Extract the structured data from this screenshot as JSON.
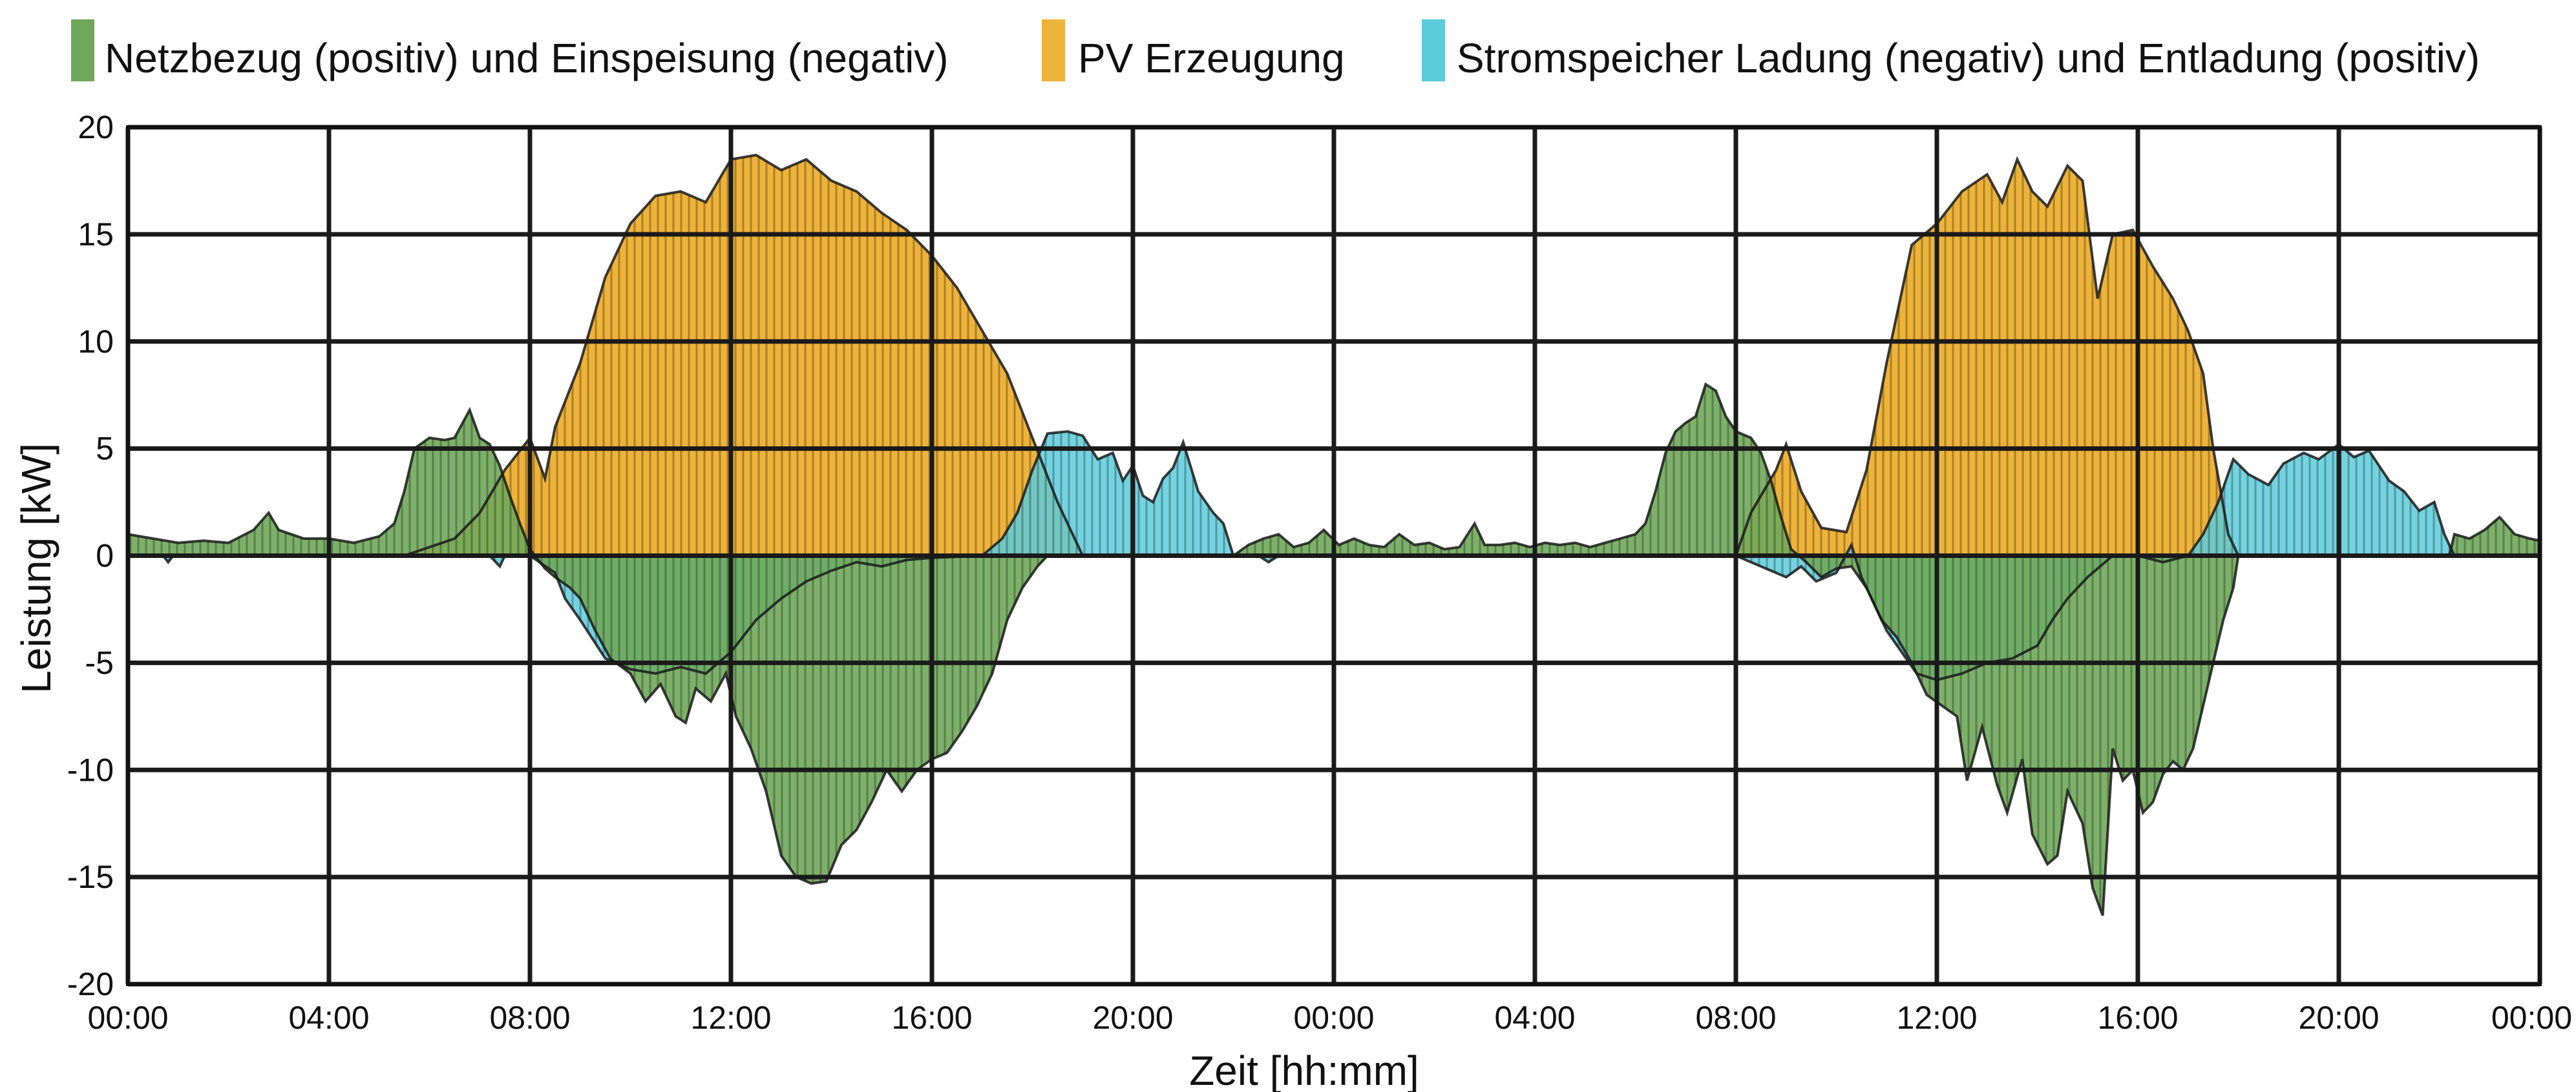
{
  "chart_data": {
    "type": "area",
    "xlabel": "Zeit [hh:mm]",
    "ylabel": "Leistung [kW]",
    "ylim": [
      -20,
      20
    ],
    "xlim_hours": [
      0,
      48
    ],
    "grid": true,
    "legend_position": "top",
    "x_ticks": [
      {
        "h": 0,
        "label": "00:00"
      },
      {
        "h": 4,
        "label": "04:00"
      },
      {
        "h": 8,
        "label": "08:00"
      },
      {
        "h": 12,
        "label": "12:00"
      },
      {
        "h": 16,
        "label": "16:00"
      },
      {
        "h": 20,
        "label": "20:00"
      },
      {
        "h": 24,
        "label": "00:00"
      },
      {
        "h": 28,
        "label": "04:00"
      },
      {
        "h": 32,
        "label": "08:00"
      },
      {
        "h": 36,
        "label": "12:00"
      },
      {
        "h": 40,
        "label": "16:00"
      },
      {
        "h": 44,
        "label": "20:00"
      },
      {
        "h": 48,
        "label": "00:00"
      }
    ],
    "y_ticks": [
      {
        "v": 20,
        "label": "20"
      },
      {
        "v": 15,
        "label": "15"
      },
      {
        "v": 10,
        "label": "10"
      },
      {
        "v": 5,
        "label": "5"
      },
      {
        "v": 0,
        "label": "0"
      },
      {
        "v": -5,
        "label": "-5"
      },
      {
        "v": -10,
        "label": "-10"
      },
      {
        "v": -15,
        "label": "-15"
      },
      {
        "v": -20,
        "label": "-20"
      }
    ],
    "series": [
      {
        "name": "PV Erzeugung",
        "color": "#EEB33A",
        "points": [
          [
            0,
            0
          ],
          [
            5.5,
            0
          ],
          [
            6.5,
            0.8
          ],
          [
            7,
            2
          ],
          [
            7.5,
            4
          ],
          [
            8,
            5.5
          ],
          [
            8.3,
            3.6
          ],
          [
            8.5,
            6
          ],
          [
            9,
            9
          ],
          [
            9.5,
            13
          ],
          [
            10,
            15.5
          ],
          [
            10.5,
            16.8
          ],
          [
            11,
            17
          ],
          [
            11.5,
            16.5
          ],
          [
            12,
            18.5
          ],
          [
            12.5,
            18.7
          ],
          [
            13,
            18
          ],
          [
            13.5,
            18.5
          ],
          [
            14,
            17.5
          ],
          [
            14.5,
            17
          ],
          [
            15,
            16
          ],
          [
            15.5,
            15.2
          ],
          [
            16,
            14
          ],
          [
            16.5,
            12.5
          ],
          [
            17,
            10.5
          ],
          [
            17.5,
            8.5
          ],
          [
            18,
            5.5
          ],
          [
            18.5,
            2.5
          ],
          [
            19,
            0
          ],
          [
            32,
            0
          ],
          [
            32.3,
            2
          ],
          [
            32.8,
            4
          ],
          [
            33,
            5.2
          ],
          [
            33.3,
            3
          ],
          [
            33.7,
            1.3
          ],
          [
            34.2,
            1.1
          ],
          [
            34.6,
            4
          ],
          [
            35,
            9
          ],
          [
            35.5,
            14.5
          ],
          [
            36,
            15.5
          ],
          [
            36.5,
            17
          ],
          [
            37,
            17.8
          ],
          [
            37.3,
            16.5
          ],
          [
            37.6,
            18.5
          ],
          [
            37.9,
            17
          ],
          [
            38.2,
            16.3
          ],
          [
            38.6,
            18.2
          ],
          [
            38.9,
            17.5
          ],
          [
            39.2,
            12
          ],
          [
            39.5,
            15
          ],
          [
            39.9,
            15.2
          ],
          [
            40.3,
            13.5
          ],
          [
            40.7,
            12
          ],
          [
            41,
            10.5
          ],
          [
            41.3,
            8.5
          ],
          [
            41.5,
            5
          ],
          [
            41.8,
            1
          ],
          [
            42,
            0
          ],
          [
            48,
            0
          ]
        ]
      },
      {
        "name": "Stromspeicher Ladung (negativ) und Entladung (positiv)",
        "color": "#5CCBDB",
        "points": [
          [
            0,
            0
          ],
          [
            0.7,
            0
          ],
          [
            0.8,
            -0.3
          ],
          [
            0.9,
            0
          ],
          [
            7.2,
            0
          ],
          [
            7.4,
            -0.5
          ],
          [
            7.5,
            0
          ],
          [
            8,
            0
          ],
          [
            8.5,
            -0.8
          ],
          [
            8.7,
            -2
          ],
          [
            9,
            -3
          ],
          [
            9.5,
            -4.8
          ],
          [
            10,
            -5.3
          ],
          [
            10.5,
            -5.5
          ],
          [
            11,
            -5.2
          ],
          [
            11.5,
            -5.5
          ],
          [
            12,
            -4.5
          ],
          [
            12.5,
            -3
          ],
          [
            13,
            -2
          ],
          [
            13.5,
            -1.2
          ],
          [
            14,
            -0.7
          ],
          [
            14.5,
            -0.3
          ],
          [
            15,
            -0.5
          ],
          [
            15.5,
            -0.2
          ],
          [
            16,
            -0.1
          ],
          [
            17,
            0
          ],
          [
            17.4,
            0.8
          ],
          [
            17.7,
            2
          ],
          [
            18,
            4
          ],
          [
            18.3,
            5.7
          ],
          [
            18.7,
            5.8
          ],
          [
            19,
            5.6
          ],
          [
            19.3,
            4.5
          ],
          [
            19.6,
            4.8
          ],
          [
            19.8,
            3.5
          ],
          [
            20,
            4.2
          ],
          [
            20.2,
            2.8
          ],
          [
            20.4,
            2.5
          ],
          [
            20.6,
            3.6
          ],
          [
            20.8,
            4.1
          ],
          [
            21,
            5.3
          ],
          [
            21.3,
            3
          ],
          [
            21.6,
            2
          ],
          [
            21.8,
            1.5
          ],
          [
            22,
            0
          ],
          [
            22.5,
            0
          ],
          [
            22.7,
            -0.3
          ],
          [
            22.9,
            0
          ],
          [
            32,
            0
          ],
          [
            32.5,
            -0.5
          ],
          [
            33,
            -1
          ],
          [
            33.3,
            -0.5
          ],
          [
            33.6,
            -1.2
          ],
          [
            34,
            -0.8
          ],
          [
            34.3,
            0.5
          ],
          [
            34.5,
            -1
          ],
          [
            34.8,
            -2.5
          ],
          [
            35,
            -3.5
          ],
          [
            35.3,
            -4.5
          ],
          [
            35.6,
            -5.5
          ],
          [
            36,
            -5.8
          ],
          [
            36.5,
            -5.5
          ],
          [
            37,
            -5
          ],
          [
            37.5,
            -4.8
          ],
          [
            38,
            -4.2
          ],
          [
            38.3,
            -3
          ],
          [
            38.6,
            -2
          ],
          [
            39,
            -1
          ],
          [
            39.5,
            0
          ],
          [
            40,
            0
          ],
          [
            40.5,
            -0.3
          ],
          [
            41,
            0
          ],
          [
            41.3,
            1
          ],
          [
            41.6,
            2.5
          ],
          [
            41.9,
            4.5
          ],
          [
            42.2,
            3.8
          ],
          [
            42.6,
            3.3
          ],
          [
            42.9,
            4.3
          ],
          [
            43.3,
            4.8
          ],
          [
            43.6,
            4.5
          ],
          [
            44,
            5.2
          ],
          [
            44.3,
            4.6
          ],
          [
            44.6,
            4.9
          ],
          [
            45,
            3.5
          ],
          [
            45.3,
            3
          ],
          [
            45.6,
            2.1
          ],
          [
            45.9,
            2.5
          ],
          [
            46.1,
            1
          ],
          [
            46.3,
            0
          ],
          [
            48,
            0
          ]
        ]
      },
      {
        "name": "Netzbezug (positiv) und Einspeisung (negativ)",
        "color": "#6FA85A",
        "points": [
          [
            0,
            1
          ],
          [
            0.5,
            0.8
          ],
          [
            1,
            0.6
          ],
          [
            1.5,
            0.7
          ],
          [
            2,
            0.6
          ],
          [
            2.5,
            1.2
          ],
          [
            2.8,
            2
          ],
          [
            3,
            1.2
          ],
          [
            3.5,
            0.8
          ],
          [
            4,
            0.8
          ],
          [
            4.5,
            0.6
          ],
          [
            5,
            0.9
          ],
          [
            5.3,
            1.5
          ],
          [
            5.5,
            3
          ],
          [
            5.7,
            5
          ],
          [
            6,
            5.5
          ],
          [
            6.3,
            5.4
          ],
          [
            6.5,
            5.5
          ],
          [
            6.8,
            6.8
          ],
          [
            7,
            5.5
          ],
          [
            7.2,
            5.2
          ],
          [
            7.4,
            4.2
          ],
          [
            7.6,
            2.8
          ],
          [
            7.8,
            1.5
          ],
          [
            8,
            0.3
          ],
          [
            8.3,
            -0.6
          ],
          [
            8.5,
            -1
          ],
          [
            8.8,
            -1.5
          ],
          [
            9,
            -2
          ],
          [
            9.3,
            -3.5
          ],
          [
            9.6,
            -4.8
          ],
          [
            10,
            -5.5
          ],
          [
            10.3,
            -6.8
          ],
          [
            10.6,
            -6
          ],
          [
            10.9,
            -7.5
          ],
          [
            11.1,
            -7.8
          ],
          [
            11.3,
            -6.2
          ],
          [
            11.6,
            -6.8
          ],
          [
            11.9,
            -5.5
          ],
          [
            12.1,
            -7.5
          ],
          [
            12.4,
            -9
          ],
          [
            12.7,
            -11
          ],
          [
            13,
            -14
          ],
          [
            13.3,
            -15
          ],
          [
            13.6,
            -15.3
          ],
          [
            13.9,
            -15.2
          ],
          [
            14.2,
            -13.5
          ],
          [
            14.5,
            -12.8
          ],
          [
            14.8,
            -11.5
          ],
          [
            15.1,
            -10
          ],
          [
            15.4,
            -11
          ],
          [
            15.7,
            -10
          ],
          [
            16,
            -9.5
          ],
          [
            16.3,
            -9.2
          ],
          [
            16.6,
            -8.2
          ],
          [
            16.9,
            -7
          ],
          [
            17.2,
            -5.5
          ],
          [
            17.5,
            -3
          ],
          [
            17.8,
            -1.5
          ],
          [
            18.1,
            -0.5
          ],
          [
            18.3,
            0
          ],
          [
            18.5,
            0
          ],
          [
            19,
            0
          ],
          [
            20,
            0
          ],
          [
            21,
            0
          ],
          [
            22,
            0
          ],
          [
            22.3,
            0.5
          ],
          [
            22.6,
            0.8
          ],
          [
            22.9,
            1
          ],
          [
            23.2,
            0.4
          ],
          [
            23.5,
            0.6
          ],
          [
            23.8,
            1.2
          ],
          [
            24.1,
            0.5
          ],
          [
            24.4,
            0.8
          ],
          [
            24.7,
            0.5
          ],
          [
            25,
            0.4
          ],
          [
            25.3,
            1
          ],
          [
            25.6,
            0.5
          ],
          [
            25.9,
            0.6
          ],
          [
            26.2,
            0.3
          ],
          [
            26.5,
            0.4
          ],
          [
            26.8,
            1.5
          ],
          [
            27,
            0.5
          ],
          [
            27.3,
            0.5
          ],
          [
            27.6,
            0.6
          ],
          [
            27.9,
            0.4
          ],
          [
            28.2,
            0.6
          ],
          [
            28.5,
            0.5
          ],
          [
            28.8,
            0.6
          ],
          [
            29.1,
            0.4
          ],
          [
            29.4,
            0.6
          ],
          [
            29.7,
            0.8
          ],
          [
            30,
            1
          ],
          [
            30.2,
            1.5
          ],
          [
            30.4,
            3
          ],
          [
            30.6,
            4.8
          ],
          [
            30.8,
            5.8
          ],
          [
            31,
            6.2
          ],
          [
            31.2,
            6.5
          ],
          [
            31.4,
            8
          ],
          [
            31.6,
            7.7
          ],
          [
            31.8,
            6.5
          ],
          [
            32,
            5.8
          ],
          [
            32.3,
            5.5
          ],
          [
            32.5,
            4.8
          ],
          [
            32.7,
            3.5
          ],
          [
            32.9,
            1.8
          ],
          [
            33.1,
            0.3
          ],
          [
            33.4,
            -0.3
          ],
          [
            33.7,
            -1
          ],
          [
            34,
            -0.6
          ],
          [
            34.3,
            -0.5
          ],
          [
            34.6,
            -1.5
          ],
          [
            34.9,
            -3
          ],
          [
            35.2,
            -3.8
          ],
          [
            35.5,
            -5
          ],
          [
            35.8,
            -6.5
          ],
          [
            36.1,
            -7
          ],
          [
            36.4,
            -7.5
          ],
          [
            36.6,
            -10.5
          ],
          [
            36.9,
            -8
          ],
          [
            37.2,
            -10.7
          ],
          [
            37.4,
            -12
          ],
          [
            37.7,
            -9.5
          ],
          [
            37.9,
            -13
          ],
          [
            38.2,
            -14.4
          ],
          [
            38.4,
            -14
          ],
          [
            38.6,
            -11
          ],
          [
            38.9,
            -12.5
          ],
          [
            39.1,
            -15.5
          ],
          [
            39.3,
            -16.8
          ],
          [
            39.5,
            -9
          ],
          [
            39.7,
            -10.5
          ],
          [
            39.9,
            -10
          ],
          [
            40.1,
            -12
          ],
          [
            40.3,
            -11.5
          ],
          [
            40.5,
            -10.2
          ],
          [
            40.7,
            -9.6
          ],
          [
            40.9,
            -10
          ],
          [
            41.1,
            -9
          ],
          [
            41.3,
            -7
          ],
          [
            41.5,
            -5
          ],
          [
            41.7,
            -3
          ],
          [
            41.9,
            -1.5
          ],
          [
            42,
            0
          ],
          [
            46.2,
            0
          ],
          [
            46.3,
            1
          ],
          [
            46.6,
            0.8
          ],
          [
            46.9,
            1.2
          ],
          [
            47.2,
            1.8
          ],
          [
            47.5,
            1
          ],
          [
            47.8,
            0.8
          ],
          [
            48,
            0.7
          ]
        ]
      }
    ],
    "legend": [
      {
        "label": "Netzbezug (positiv) und Einspeisung (negativ)",
        "color": "#6FA85A"
      },
      {
        "label": "PV Erzeugung",
        "color": "#EEB33A"
      },
      {
        "label": "Stromspeicher Ladung (negativ) und Entladung (positiv)",
        "color": "#5CCBDB"
      }
    ]
  }
}
